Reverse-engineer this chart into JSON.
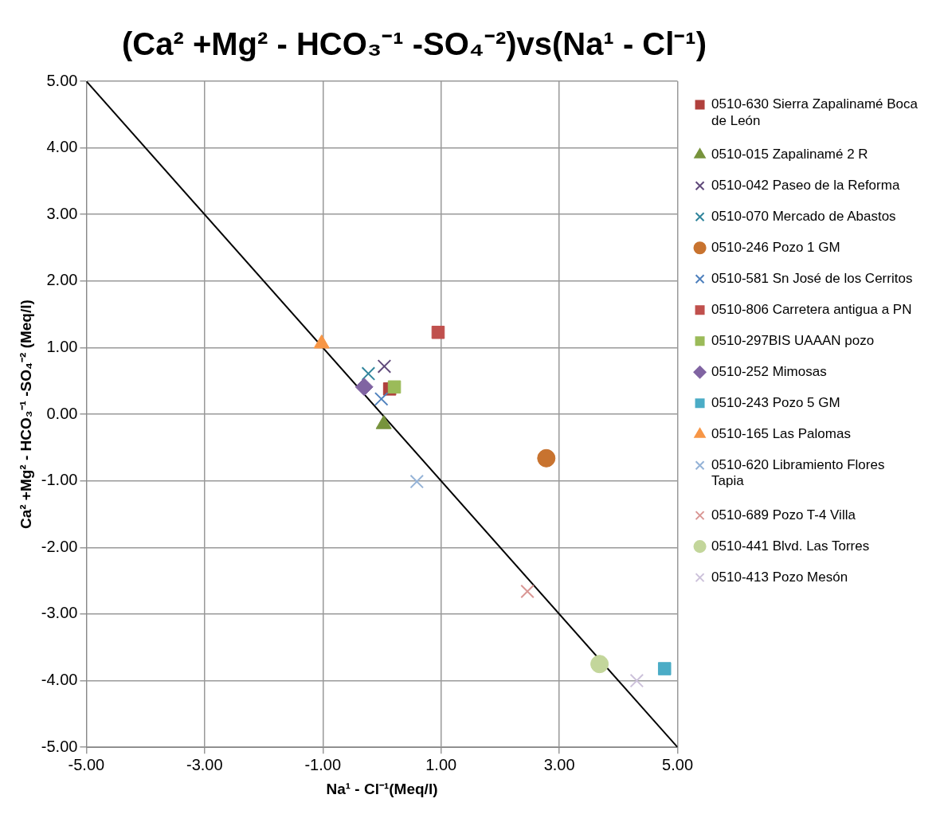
{
  "chart_data": {
    "type": "scatter",
    "title": "(Ca² +Mg² - HCO₃⁻¹ -SO₄⁻²)vs(Na¹ - Cl⁻¹)",
    "xlabel": "Na¹ - Cl⁻¹(Meq/l)",
    "ylabel": "Ca² +Mg² - HCO₃⁻¹ -SO₄⁻² (Meq/l)",
    "xlim": [
      -5,
      5
    ],
    "xticks": [
      {
        "value": -5,
        "label": "-5.00"
      },
      {
        "value": -3,
        "label": "-3.00"
      },
      {
        "value": -1,
        "label": "-1.00"
      },
      {
        "value": 1,
        "label": "1.00"
      },
      {
        "value": 3,
        "label": "3.00"
      },
      {
        "value": 5,
        "label": "5.00"
      }
    ],
    "ylim": [
      -5,
      5
    ],
    "yticks": [
      {
        "value": -5,
        "label": "-5.00"
      },
      {
        "value": -4,
        "label": "-4.00"
      },
      {
        "value": -3,
        "label": "-3.00"
      },
      {
        "value": -2,
        "label": "-2.00"
      },
      {
        "value": -1,
        "label": "-1.00"
      },
      {
        "value": 0,
        "label": "0.00"
      },
      {
        "value": 1,
        "label": "1.00"
      },
      {
        "value": 2,
        "label": "2.00"
      },
      {
        "value": 3,
        "label": "3.00"
      },
      {
        "value": 4,
        "label": "4.00"
      },
      {
        "value": 5,
        "label": "5.00"
      }
    ],
    "grid": true,
    "legend": "right",
    "series": [
      {
        "name": "0510-630 Sierra Zapalinamé Boca de León",
        "color": "#b0403d",
        "marker": "square",
        "x": [
          0.13
        ],
        "values": [
          0.38
        ]
      },
      {
        "name": "0510-015 Zapalinamé 2 R",
        "color": "#77933c",
        "marker": "triangle",
        "x": [
          0.03
        ],
        "values": [
          -0.15
        ]
      },
      {
        "name": "0510-042 Paseo de la Reforma",
        "color": "#604a7b",
        "marker": "cross",
        "x": [
          0.04
        ],
        "values": [
          0.72
        ]
      },
      {
        "name": "0510-070 Mercado de Abastos",
        "color": "#31859c",
        "marker": "cross",
        "x": [
          -0.23
        ],
        "values": [
          0.61
        ]
      },
      {
        "name": "0510-246 Pozo 1 GM",
        "color": "#c8732f",
        "marker": "circle",
        "x": [
          2.78
        ],
        "values": [
          -0.66
        ]
      },
      {
        "name": "0510-581 Sn José de los Cerritos",
        "color": "#4f81bd",
        "marker": "cross",
        "x": [
          -0.01
        ],
        "values": [
          0.23
        ]
      },
      {
        "name": "0510-806 Carretera antigua a PN",
        "color": "#c0504d",
        "marker": "square",
        "x": [
          0.95
        ],
        "values": [
          1.23
        ]
      },
      {
        "name": "0510-297BIS UAAAN pozo",
        "color": "#9bbb59",
        "marker": "square",
        "x": [
          0.21
        ],
        "values": [
          0.41
        ]
      },
      {
        "name": "0510-252 Mimosas",
        "color": "#8064a2",
        "marker": "diamond",
        "x": [
          -0.3
        ],
        "values": [
          0.41
        ]
      },
      {
        "name": "0510-243 Pozo 5 GM",
        "color": "#4bacc6",
        "marker": "square",
        "x": [
          4.78
        ],
        "values": [
          -3.82
        ]
      },
      {
        "name": "0510-165 Las Palomas",
        "color": "#f79646",
        "marker": "triangle",
        "x": [
          -1.02
        ],
        "values": [
          1.06
        ]
      },
      {
        "name": "0510-620 Libramiento Flores Tapia",
        "color": "#95b3d7",
        "marker": "cross",
        "x": [
          0.59
        ],
        "values": [
          -1.01
        ]
      },
      {
        "name": "0510-689 Pozo T-4 Villa",
        "color": "#d99694",
        "marker": "cross",
        "x": [
          2.46
        ],
        "values": [
          -2.66
        ]
      },
      {
        "name": "0510-441 Blvd. Las Torres",
        "color": "#c3d69b",
        "marker": "circle",
        "x": [
          3.68
        ],
        "values": [
          -3.75
        ]
      },
      {
        "name": "0510-413 Pozo Mesón",
        "color": "#ccc1da",
        "marker": "cross",
        "x": [
          4.31
        ],
        "values": [
          -4.0
        ]
      },
      {
        "type": "line",
        "color": "#000000",
        "marker": "none",
        "x": [
          -5,
          5
        ],
        "values": [
          5,
          -5
        ]
      }
    ]
  }
}
